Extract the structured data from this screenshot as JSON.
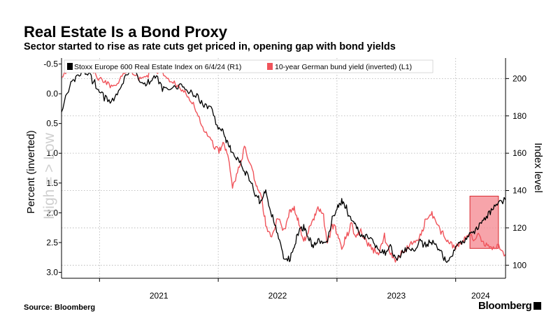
{
  "header": {
    "title": "Real Estate Is a Bond Proxy",
    "subtitle": "Sector started to rise as rate cuts get priced in, opening gap with bond yields"
  },
  "footer": {
    "source": "Source: Bloomberg",
    "brand": "Bloomberg"
  },
  "colors": {
    "stoxx": "#000000",
    "bund": "#f0545b",
    "highlight_fill": "#f58d95",
    "highlight_stroke": "#d8282e",
    "grid": "#b0b0b0"
  },
  "chart_data": {
    "type": "line",
    "title": "Real Estate Is a Bond Proxy",
    "subtitle": "Sector started to rise as rate cuts get priced in, opening gap with bond yields",
    "x_ticks": [
      "2021",
      "2022",
      "2023",
      "2024"
    ],
    "x_range": [
      2020.68,
      2024.42
    ],
    "y_left": {
      "label": "Percent (inverted)",
      "annotation": "High = > Low",
      "inverted": true,
      "range": [
        -0.6,
        3.1
      ],
      "ticks": [
        -0.5,
        0.0,
        0.5,
        1.0,
        1.5,
        2.0,
        2.5,
        3.0
      ],
      "tick_labels": [
        "-0.5",
        "0.0",
        "0.5",
        "1.0",
        "1.5",
        "2.0",
        "2.5",
        "3.0"
      ]
    },
    "y_right": {
      "label": "Index level",
      "range": [
        93,
        211
      ],
      "ticks": [
        100,
        120,
        140,
        160,
        180,
        200
      ],
      "tick_labels": [
        "100",
        "120",
        "140",
        "160",
        "180",
        "200"
      ]
    },
    "grid": true,
    "legend_position": "top",
    "series": [
      {
        "name": "Stoxx Europe 600 Real Estate Index on 6/4/24 (R1)",
        "axis": "right",
        "x": [
          2020.68,
          2020.75,
          2020.8,
          2020.86,
          2020.92,
          2020.98,
          2021.04,
          2021.1,
          2021.16,
          2021.22,
          2021.28,
          2021.34,
          2021.4,
          2021.46,
          2021.52,
          2021.58,
          2021.64,
          2021.7,
          2021.76,
          2021.82,
          2021.88,
          2021.94,
          2022.0,
          2022.04,
          2022.08,
          2022.12,
          2022.17,
          2022.22,
          2022.27,
          2022.32,
          2022.36,
          2022.4,
          2022.45,
          2022.5,
          2022.55,
          2022.6,
          2022.64,
          2022.68,
          2022.72,
          2022.76,
          2022.8,
          2022.84,
          2022.88,
          2022.92,
          2022.96,
          2023.0,
          2023.04,
          2023.08,
          2023.12,
          2023.16,
          2023.2,
          2023.25,
          2023.3,
          2023.35,
          2023.4,
          2023.45,
          2023.5,
          2023.55,
          2023.6,
          2023.65,
          2023.7,
          2023.75,
          2023.8,
          2023.85,
          2023.9,
          2023.95,
          2024.0,
          2024.05,
          2024.1,
          2024.15,
          2024.2,
          2024.25,
          2024.3,
          2024.35,
          2024.42
        ],
        "values": [
          183,
          196,
          201,
          205,
          201,
          196,
          190,
          188,
          192,
          202,
          205,
          198,
          197,
          202,
          196,
          193,
          196,
          195,
          193,
          191,
          185,
          183,
          174,
          171,
          165,
          160,
          157,
          150,
          146,
          137,
          133,
          139,
          128,
          116,
          105,
          103,
          110,
          118,
          120,
          115,
          110,
          113,
          113,
          114,
          125,
          130,
          135,
          130,
          124,
          122,
          115,
          116,
          113,
          109,
          107,
          110,
          103,
          107,
          110,
          108,
          113,
          110,
          113,
          109,
          104,
          103,
          110,
          112,
          114,
          118,
          122,
          125,
          130,
          133,
          135
        ]
      },
      {
        "name": "10-year German bund yield (inverted) (L1)",
        "axis": "left",
        "x": [
          2020.68,
          2020.75,
          2020.8,
          2020.86,
          2020.92,
          2020.98,
          2021.04,
          2021.1,
          2021.16,
          2021.22,
          2021.28,
          2021.34,
          2021.4,
          2021.46,
          2021.52,
          2021.58,
          2021.64,
          2021.7,
          2021.76,
          2021.82,
          2021.88,
          2021.94,
          2022.0,
          2022.04,
          2022.08,
          2022.12,
          2022.17,
          2022.22,
          2022.27,
          2022.32,
          2022.36,
          2022.4,
          2022.45,
          2022.5,
          2022.55,
          2022.6,
          2022.64,
          2022.68,
          2022.72,
          2022.76,
          2022.8,
          2022.84,
          2022.88,
          2022.92,
          2022.96,
          2023.0,
          2023.04,
          2023.08,
          2023.12,
          2023.16,
          2023.2,
          2023.25,
          2023.3,
          2023.35,
          2023.4,
          2023.45,
          2023.5,
          2023.55,
          2023.6,
          2023.65,
          2023.7,
          2023.75,
          2023.8,
          2023.85,
          2023.9,
          2023.95,
          2024.0,
          2024.05,
          2024.1,
          2024.15,
          2024.2,
          2024.25,
          2024.3,
          2024.35,
          2024.42
        ],
        "values": [
          -0.3,
          -0.4,
          -0.5,
          -0.55,
          -0.45,
          -0.3,
          -0.2,
          -0.15,
          -0.2,
          -0.4,
          -0.35,
          -0.25,
          -0.3,
          -0.45,
          -0.35,
          -0.25,
          -0.15,
          -0.05,
          0.1,
          0.3,
          0.6,
          0.8,
          0.95,
          0.85,
          1.0,
          1.6,
          1.3,
          0.9,
          1.2,
          1.55,
          1.7,
          2.2,
          2.4,
          2.1,
          2.3,
          2.0,
          1.9,
          2.2,
          2.5,
          2.3,
          2.1,
          1.9,
          2.0,
          2.5,
          2.2,
          2.3,
          2.6,
          2.4,
          2.2,
          2.4,
          2.3,
          2.5,
          2.6,
          2.7,
          2.4,
          2.7,
          2.8,
          2.65,
          2.6,
          2.5,
          2.4,
          2.1,
          2.0,
          2.2,
          2.4,
          2.5,
          2.6,
          2.5,
          2.35,
          2.45,
          2.4,
          2.55,
          2.6,
          2.55,
          2.7
        ]
      }
    ],
    "highlight_region": {
      "x_start": 2024.12,
      "x_end": 2024.36,
      "right_axis_from": 109,
      "right_axis_to": 137
    }
  }
}
